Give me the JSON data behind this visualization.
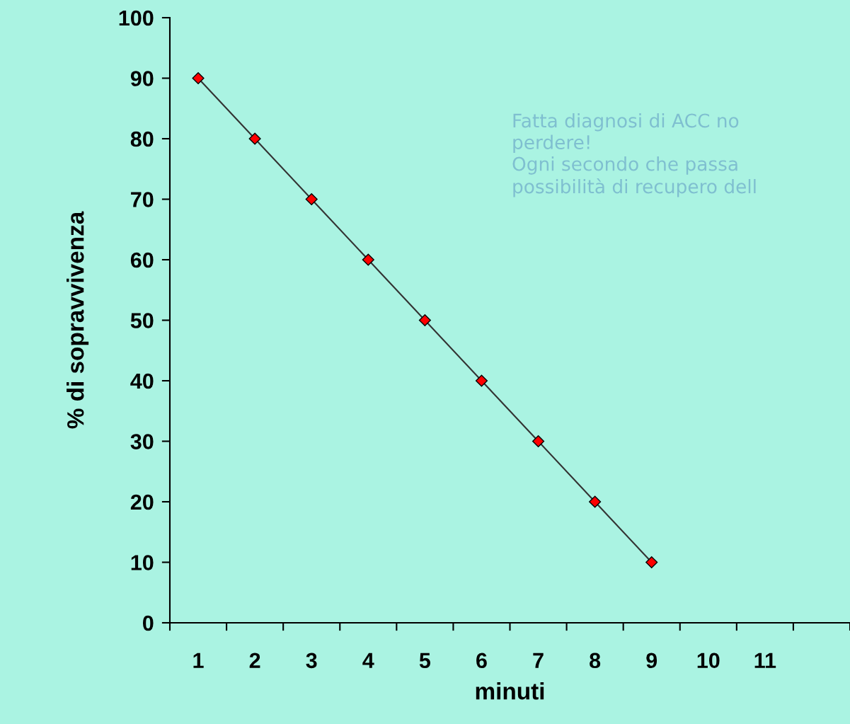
{
  "chart_data": {
    "type": "line",
    "xlabel": "minuti",
    "ylabel": "% di sopravvivenza",
    "categories": [
      "1",
      "2",
      "3",
      "4",
      "5",
      "6",
      "7",
      "8",
      "9",
      "10",
      "11",
      null
    ],
    "series": [
      {
        "color": "#ff0000",
        "values": [
          90,
          80,
          70,
          60,
          50,
          40,
          30,
          20,
          10,
          null,
          null,
          null
        ]
      }
    ],
    "ylim": [
      0,
      100
    ],
    "yticks": [
      0,
      10,
      20,
      30,
      40,
      50,
      60,
      70,
      80,
      90,
      100
    ],
    "marker": "diamond",
    "line_style": "solid",
    "grid": false,
    "legend": false,
    "annotations": [
      "Fatta diagnosi di ACC no\nperdere!\nOgni secondo che passa\npossibilità di recupero dell"
    ]
  }
}
